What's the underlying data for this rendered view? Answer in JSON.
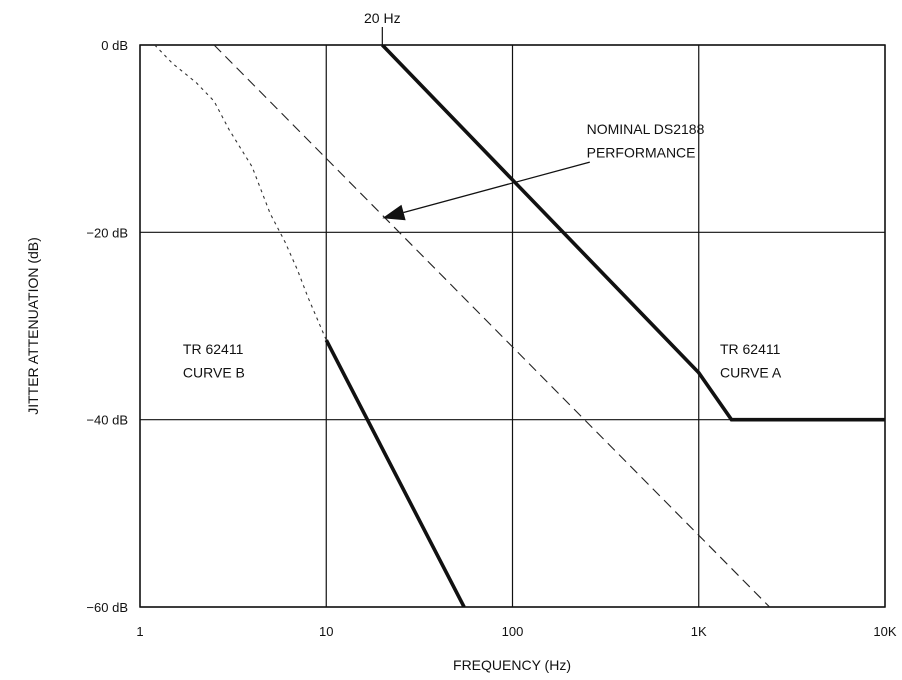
{
  "chart_data": {
    "type": "line",
    "xlabel": "FREQUENCY (Hz)",
    "ylabel": "JITTER ATTENUATION (dB)",
    "xscale": "log",
    "xlim": [
      1,
      10000
    ],
    "ylim": [
      -60,
      0
    ],
    "grid": true,
    "x_ticks": [
      {
        "value": 1,
        "label": "1"
      },
      {
        "value": 10,
        "label": "10"
      },
      {
        "value": 100,
        "label": "100"
      },
      {
        "value": 1000,
        "label": "1K"
      },
      {
        "value": 10000,
        "label": "10K"
      }
    ],
    "y_ticks": [
      {
        "value": 0,
        "label": "0 dB"
      },
      {
        "value": -20,
        "label": "-20 dB"
      },
      {
        "value": -40,
        "label": "-40 dB"
      },
      {
        "value": -60,
        "label": "-60 dB"
      }
    ],
    "series": [
      {
        "style": "thick-solid",
        "points": [
          [
            20,
            0
          ],
          [
            1000,
            -35
          ],
          [
            1500,
            -40
          ],
          [
            10000,
            -40
          ]
        ]
      },
      {
        "style": "thick-solid",
        "points": [
          [
            10,
            -31.5
          ],
          [
            55,
            -60
          ]
        ]
      },
      {
        "style": "dashed",
        "points": [
          [
            2.5,
            0
          ],
          [
            2400,
            -60
          ]
        ]
      },
      {
        "style": "dotted",
        "points": [
          [
            1.2,
            0
          ],
          [
            1.5,
            -2
          ],
          [
            2,
            -4
          ],
          [
            2.5,
            -6
          ],
          [
            3,
            -9
          ],
          [
            4,
            -13
          ],
          [
            5,
            -18
          ],
          [
            6,
            -21
          ],
          [
            7,
            -24
          ],
          [
            8,
            -27
          ],
          [
            10,
            -31.5
          ]
        ]
      }
    ],
    "annotations": [
      {
        "key": "freq_marker",
        "text": "20 Hz",
        "x": 20,
        "y": 0
      },
      {
        "key": "curve_a_line1",
        "text": "TR 62411",
        "x": 1300,
        "y": -33
      },
      {
        "key": "curve_a_line2",
        "text": "CURVE A",
        "x": 1300,
        "y": -35.5
      },
      {
        "key": "curve_b_line1",
        "text": "TR 62411",
        "x": 1.7,
        "y": -33
      },
      {
        "key": "curve_b_line2",
        "text": "CURVE B",
        "x": 1.7,
        "y": -35.5
      },
      {
        "key": "nominal_line1",
        "text": "NOMINAL DS2188",
        "x": 250,
        "y": -9.5
      },
      {
        "key": "nominal_line2",
        "text": "PERFORMANCE",
        "x": 250,
        "y": -12
      }
    ],
    "arrow": {
      "from": [
        260,
        -12.5
      ],
      "to": [
        20,
        -18.5
      ]
    }
  }
}
